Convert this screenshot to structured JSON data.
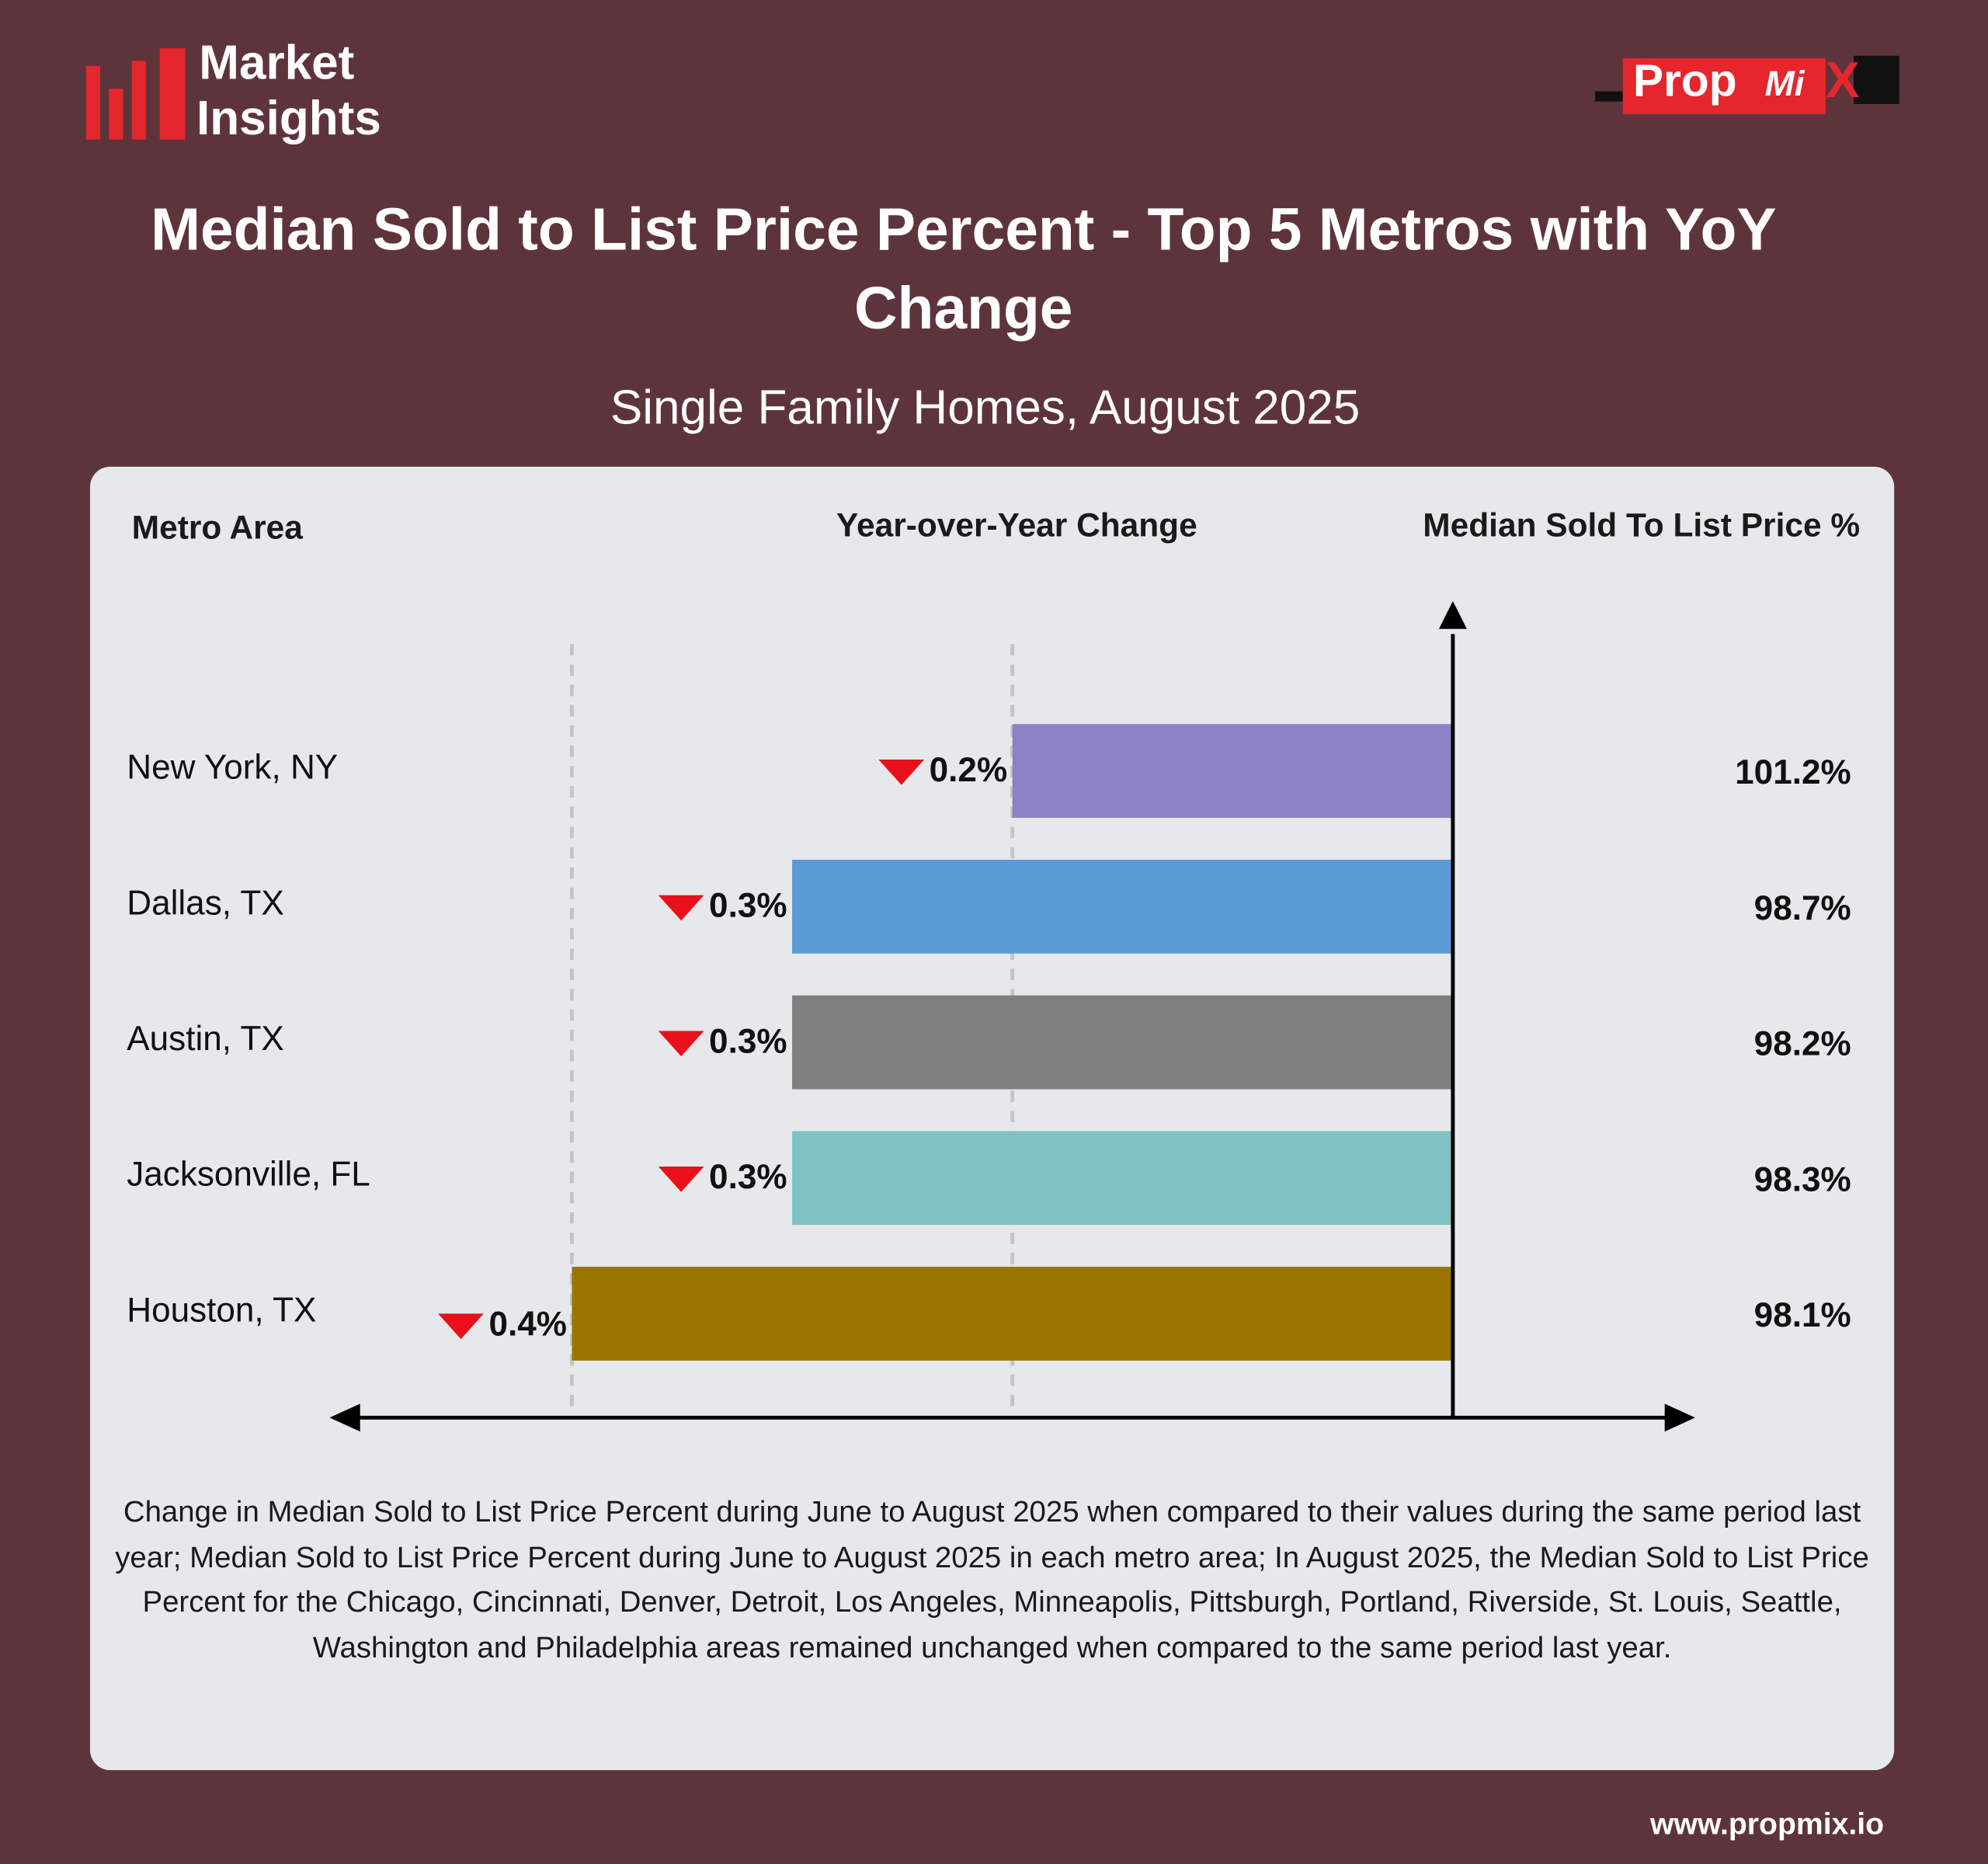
{
  "header": {
    "logo_line1": "Market",
    "logo_line2": "Insights",
    "brand": [
      "Prop",
      "Mi",
      "X"
    ]
  },
  "chart_data": {
    "type": "bar",
    "title": "Median Sold to List Price Percent - Top 5 Metros with YoY Change",
    "subtitle": "Single Family Homes, August 2025",
    "column_headers": [
      "Metro Area",
      "Year-over-Year Change",
      "Median Sold To List Price %"
    ],
    "categories": [
      "New York, NY",
      "Dallas, TX",
      "Austin, TX",
      "Jacksonville, FL",
      "Houston, TX"
    ],
    "values": [
      -0.2,
      -0.3,
      -0.3,
      -0.3,
      -0.4
    ],
    "value_labels": [
      "0.2%",
      "0.3%",
      "0.3%",
      "0.3%",
      "0.4%"
    ],
    "colors": [
      "#8c83c5",
      "#5b9bd5",
      "#7f7f7f",
      "#80c1c4",
      "#9a7600"
    ],
    "median_values": [
      101.2,
      98.7,
      98.2,
      98.3,
      98.1
    ],
    "median_labels": [
      "101.2%",
      "98.7%",
      "98.2%",
      "98.3%",
      "98.1%"
    ],
    "xlim": [
      -0.51,
      0.11
    ],
    "grid_x": [
      -0.4,
      -0.2
    ],
    "down_color": "#e8101a",
    "footnote": "Change in Median Sold to List Price Percent during June to August 2025 when compared to their values during the same period last year; Median Sold to List Price Percent during June to August 2025 in each metro area; In August 2025, the Median Sold to List Price Percent for the Chicago, Cincinnati, Denver, Detroit, Los Angeles, Minneapolis, Pittsburgh, Portland, Riverside, St. Louis, Seattle, Washington and Philadelphia areas remained unchanged when compared to the same period last year."
  },
  "footer": {
    "website": "www.propmix.io"
  }
}
